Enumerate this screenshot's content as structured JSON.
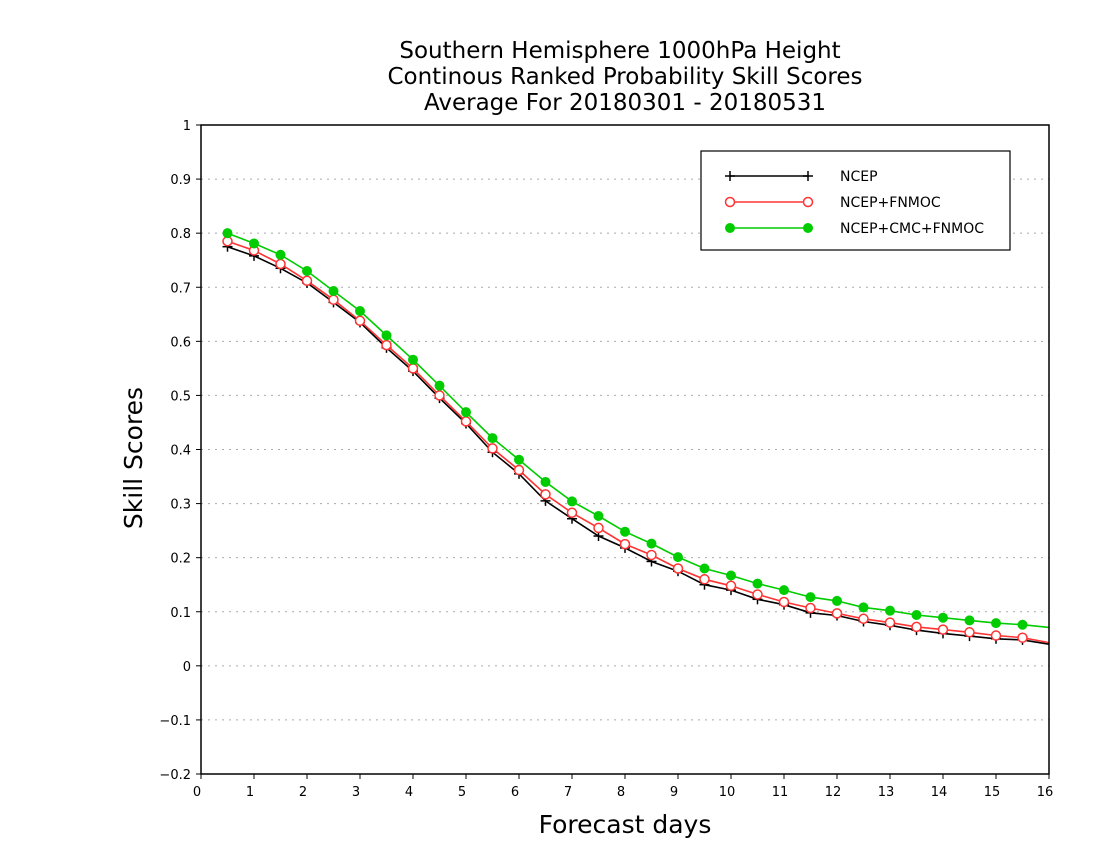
{
  "chart_data": {
    "type": "line",
    "title": [
      "Southern Hemisphere 1000hPa Height",
      "Continous Ranked Probability Skill Scores",
      "Average For 20180301 - 20180531"
    ],
    "xlabel": "Forecast days",
    "ylabel": "Skill Scores",
    "xlim": [
      0,
      16
    ],
    "ylim": [
      -0.2,
      1
    ],
    "xticks": [
      0,
      1,
      2,
      3,
      4,
      5,
      6,
      7,
      8,
      9,
      10,
      11,
      12,
      13,
      14,
      15,
      16
    ],
    "yticks": [
      -0.2,
      -0.1,
      0,
      0.1,
      0.2,
      0.3,
      0.4,
      0.5,
      0.6,
      0.7,
      0.8,
      0.9,
      1
    ],
    "ytick_labels": [
      "−0.2",
      "−0.1",
      "0",
      "0.1",
      "0.2",
      "0.3",
      "0.4",
      "0.5",
      "0.6",
      "0.7",
      "0.8",
      "0.9",
      "1"
    ],
    "grid": "horizontal dotted",
    "legend_position": "top-right",
    "x": [
      0.5,
      1,
      1.5,
      2,
      2.5,
      3,
      3.5,
      4,
      4.5,
      5,
      5.5,
      6,
      6.5,
      7,
      7.5,
      8,
      8.5,
      9,
      9.5,
      10,
      10.5,
      11,
      11.5,
      12,
      12.5,
      13,
      13.5,
      14,
      14.5,
      15,
      15.5,
      16
    ],
    "series": [
      {
        "name": "NCEP",
        "color": "#000000",
        "marker": "plus",
        "values": [
          0.775,
          0.758,
          0.735,
          0.708,
          0.672,
          0.635,
          0.588,
          0.545,
          0.495,
          0.448,
          0.395,
          0.355,
          0.305,
          0.272,
          0.24,
          0.218,
          0.193,
          0.175,
          0.15,
          0.14,
          0.123,
          0.113,
          0.098,
          0.093,
          0.082,
          0.075,
          0.066,
          0.06,
          0.055,
          0.05,
          0.048,
          0.04
        ]
      },
      {
        "name": "NCEP+FNMOC",
        "color": "#ff3333",
        "marker": "open-circle",
        "values": [
          0.785,
          0.768,
          0.743,
          0.712,
          0.677,
          0.638,
          0.593,
          0.55,
          0.5,
          0.452,
          0.402,
          0.362,
          0.317,
          0.283,
          0.255,
          0.225,
          0.205,
          0.18,
          0.16,
          0.148,
          0.132,
          0.118,
          0.107,
          0.097,
          0.087,
          0.08,
          0.072,
          0.067,
          0.062,
          0.056,
          0.052,
          0.043
        ]
      },
      {
        "name": "NCEP+CMC+FNMOC",
        "color": "#00cc00",
        "marker": "filled-circle",
        "values": [
          0.8,
          0.781,
          0.76,
          0.73,
          0.693,
          0.656,
          0.611,
          0.566,
          0.518,
          0.469,
          0.421,
          0.381,
          0.34,
          0.304,
          0.277,
          0.248,
          0.226,
          0.201,
          0.18,
          0.167,
          0.152,
          0.14,
          0.127,
          0.12,
          0.108,
          0.102,
          0.094,
          0.089,
          0.084,
          0.079,
          0.076,
          0.071
        ]
      }
    ]
  }
}
